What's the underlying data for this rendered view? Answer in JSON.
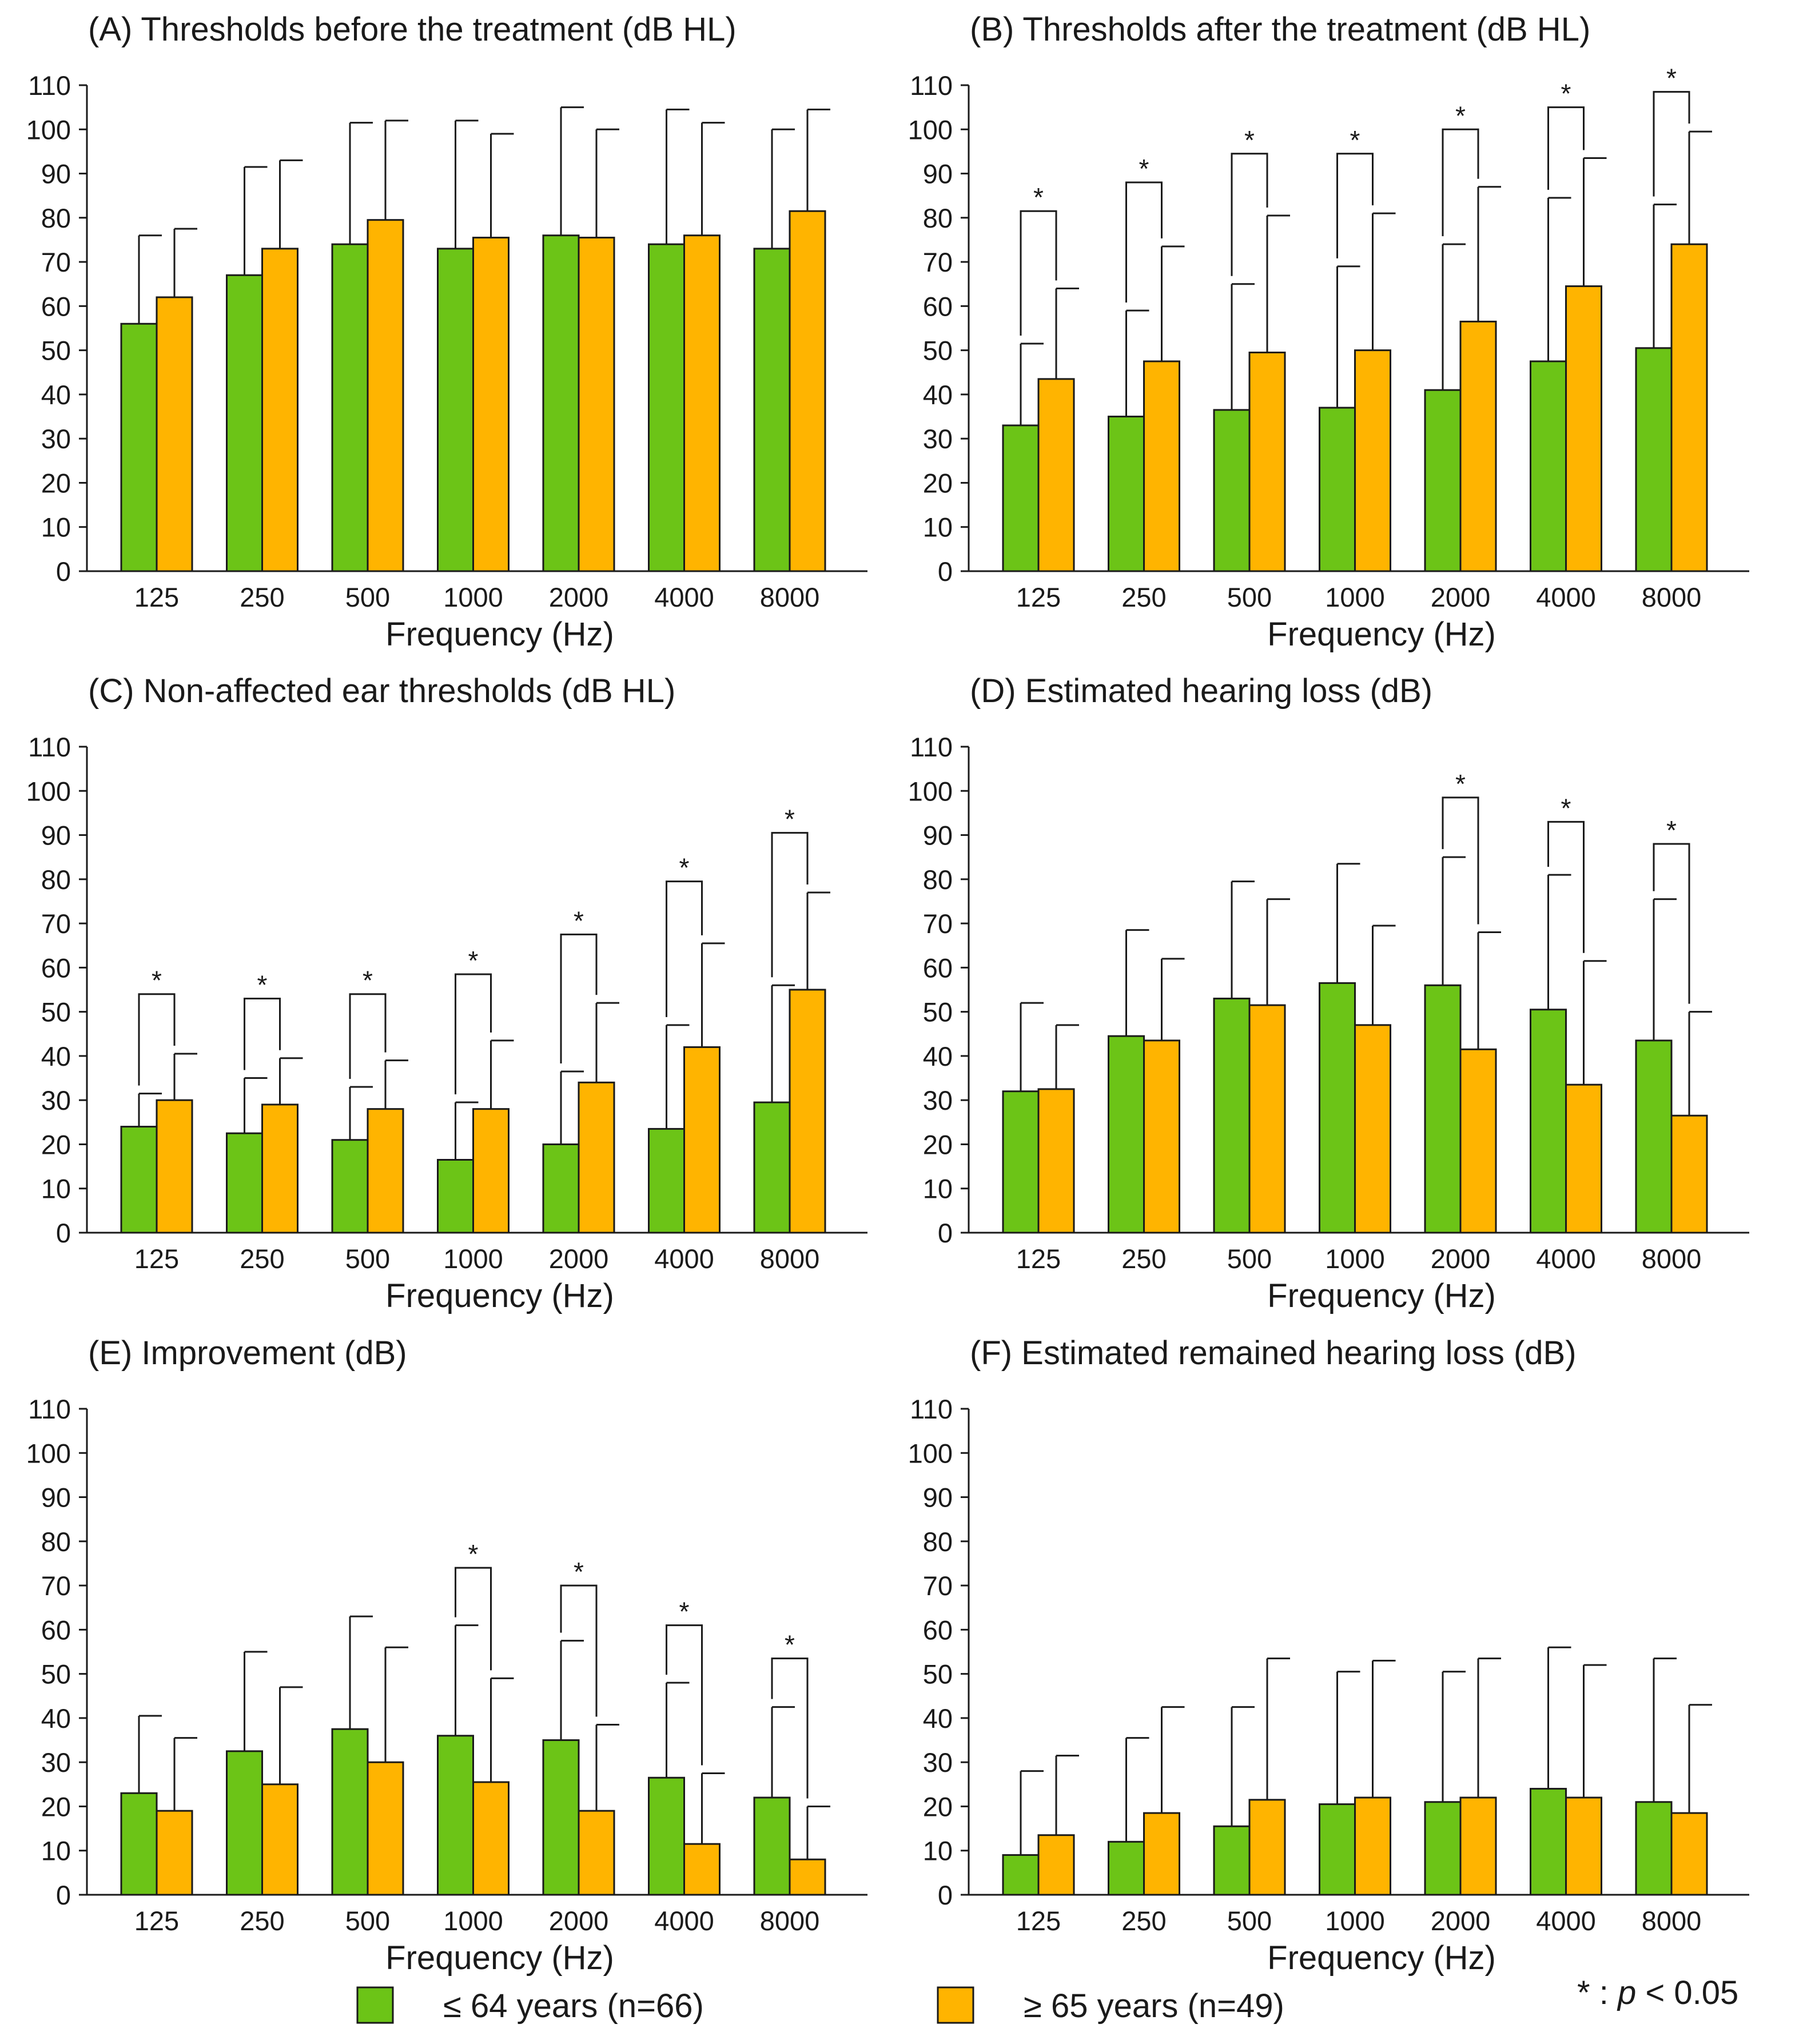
{
  "chart_data": [
    {
      "id": "A",
      "type": "bar",
      "title": "(A) Thresholds before the treatment (dB HL)",
      "xlabel": "Frequency (Hz)",
      "ylabel": "",
      "ylim": [
        0,
        110
      ],
      "yticks": [
        "0",
        "10",
        "20",
        "30",
        "40",
        "50",
        "60",
        "70",
        "80",
        "90",
        "100",
        "110"
      ],
      "categories": [
        "125",
        "250",
        "500",
        "1000",
        "2000",
        "4000",
        "8000"
      ],
      "series": [
        {
          "name": "≤ 64 years (n=66)",
          "values": [
            56,
            67,
            74,
            73,
            76,
            74,
            73
          ],
          "errors": [
            76,
            91.5,
            101.5,
            102,
            105,
            104.5,
            100
          ]
        },
        {
          "name": "≥ 65 years (n=49)",
          "values": [
            62,
            73,
            79.5,
            75.5,
            75.5,
            76,
            81.5
          ],
          "errors": [
            77.5,
            93,
            102,
            99,
            100,
            101.5,
            104.5
          ]
        }
      ],
      "significance": []
    },
    {
      "id": "B",
      "type": "bar",
      "title": "(B) Thresholds after the treatment (dB HL)",
      "xlabel": "Frequency (Hz)",
      "ylabel": "",
      "ylim": [
        0,
        110
      ],
      "yticks": [
        "0",
        "10",
        "20",
        "30",
        "40",
        "50",
        "60",
        "70",
        "80",
        "90",
        "100",
        "110"
      ],
      "categories": [
        "125",
        "250",
        "500",
        "1000",
        "2000",
        "4000",
        "8000"
      ],
      "series": [
        {
          "name": "≤ 64 years (n=66)",
          "values": [
            33,
            35,
            36.5,
            37,
            41,
            47.5,
            50.5
          ],
          "errors": [
            51.5,
            59,
            65,
            69,
            74,
            84.5,
            83
          ]
        },
        {
          "name": "≥ 65 years (n=49)",
          "values": [
            43.5,
            47.5,
            49.5,
            50,
            56.5,
            64.5,
            74
          ],
          "errors": [
            64,
            73.5,
            80.5,
            81,
            87,
            93.5,
            99.5
          ]
        }
      ],
      "significance": [
        {
          "category": "125",
          "label": "*",
          "level": 81.5
        },
        {
          "category": "250",
          "label": "*",
          "level": 88
        },
        {
          "category": "500",
          "label": "*",
          "level": 94.5
        },
        {
          "category": "1000",
          "label": "*",
          "level": 94.5
        },
        {
          "category": "2000",
          "label": "*",
          "level": 100
        },
        {
          "category": "4000",
          "label": "*",
          "level": 105
        },
        {
          "category": "8000",
          "label": "*",
          "level": 108.5
        }
      ]
    },
    {
      "id": "C",
      "type": "bar",
      "title": "(C) Non-affected ear thresholds (dB HL)",
      "xlabel": "Frequency (Hz)",
      "ylabel": "",
      "ylim": [
        0,
        110
      ],
      "yticks": [
        "0",
        "10",
        "20",
        "30",
        "40",
        "50",
        "60",
        "70",
        "80",
        "90",
        "100",
        "110"
      ],
      "categories": [
        "125",
        "250",
        "500",
        "1000",
        "2000",
        "4000",
        "8000"
      ],
      "series": [
        {
          "name": "≤ 64 years (n=66)",
          "values": [
            24,
            22.5,
            21,
            16.5,
            20,
            23.5,
            29.5
          ],
          "errors": [
            31.5,
            35,
            33,
            29.5,
            36.5,
            47,
            56
          ]
        },
        {
          "name": "≥ 65 years (n=49)",
          "values": [
            30,
            29,
            28,
            28,
            34,
            42,
            55
          ],
          "errors": [
            40.5,
            39.5,
            39,
            43.5,
            52,
            65.5,
            77
          ]
        }
      ],
      "significance": [
        {
          "category": "125",
          "label": "*",
          "level": 54
        },
        {
          "category": "250",
          "label": "*",
          "level": 53
        },
        {
          "category": "500",
          "label": "*",
          "level": 54
        },
        {
          "category": "1000",
          "label": "*",
          "level": 58.5
        },
        {
          "category": "2000",
          "label": "*",
          "level": 67.5
        },
        {
          "category": "4000",
          "label": "*",
          "level": 79.5
        },
        {
          "category": "8000",
          "label": "*",
          "level": 90.5
        }
      ]
    },
    {
      "id": "D",
      "type": "bar",
      "title": "(D) Estimated hearing loss (dB)",
      "xlabel": "Frequency (Hz)",
      "ylabel": "",
      "ylim": [
        0,
        110
      ],
      "yticks": [
        "0",
        "10",
        "20",
        "30",
        "40",
        "50",
        "60",
        "70",
        "80",
        "90",
        "100",
        "110"
      ],
      "categories": [
        "125",
        "250",
        "500",
        "1000",
        "2000",
        "4000",
        "8000"
      ],
      "series": [
        {
          "name": "≤ 64 years (n=66)",
          "values": [
            32,
            44.5,
            53,
            56.5,
            56,
            50.5,
            43.5
          ],
          "errors": [
            52,
            68.5,
            79.5,
            83.5,
            85,
            81,
            75.5
          ]
        },
        {
          "name": "≥ 65 years (n=49)",
          "values": [
            32.5,
            43.5,
            51.5,
            47,
            41.5,
            33.5,
            26.5
          ],
          "errors": [
            47,
            62,
            75.5,
            69.5,
            68,
            61.5,
            50
          ]
        }
      ],
      "significance": [
        {
          "category": "2000",
          "label": "*",
          "level": 98.5
        },
        {
          "category": "4000",
          "label": "*",
          "level": 93
        },
        {
          "category": "8000",
          "label": "*",
          "level": 88
        }
      ]
    },
    {
      "id": "E",
      "type": "bar",
      "title": "(E) Improvement (dB)",
      "xlabel": "Frequency (Hz)",
      "ylabel": "",
      "ylim": [
        0,
        110
      ],
      "yticks": [
        "0",
        "10",
        "20",
        "30",
        "40",
        "50",
        "60",
        "70",
        "80",
        "90",
        "100",
        "110"
      ],
      "categories": [
        "125",
        "250",
        "500",
        "1000",
        "2000",
        "4000",
        "8000"
      ],
      "series": [
        {
          "name": "≤ 64 years (n=66)",
          "values": [
            23,
            32.5,
            37.5,
            36,
            35,
            26.5,
            22
          ],
          "errors": [
            40.5,
            55,
            63,
            61,
            57.5,
            48,
            42.5
          ]
        },
        {
          "name": "≥ 65 years (n=49)",
          "values": [
            19,
            25,
            30,
            25.5,
            19,
            11.5,
            8
          ],
          "errors": [
            35.5,
            47,
            56,
            49,
            38.5,
            27.5,
            20
          ]
        }
      ],
      "significance": [
        {
          "category": "1000",
          "label": "*",
          "level": 74
        },
        {
          "category": "2000",
          "label": "*",
          "level": 70
        },
        {
          "category": "4000",
          "label": "*",
          "level": 61
        },
        {
          "category": "8000",
          "label": "*",
          "level": 53.5
        }
      ]
    },
    {
      "id": "F",
      "type": "bar",
      "title": "(F) Estimated remained hearing loss (dB)",
      "xlabel": "Frequency (Hz)",
      "ylabel": "",
      "ylim": [
        0,
        110
      ],
      "yticks": [
        "0",
        "10",
        "20",
        "30",
        "40",
        "50",
        "60",
        "70",
        "80",
        "90",
        "100",
        "110"
      ],
      "categories": [
        "125",
        "250",
        "500",
        "1000",
        "2000",
        "4000",
        "8000"
      ],
      "series": [
        {
          "name": "≤ 64 years (n=66)",
          "values": [
            9,
            12,
            15.5,
            20.5,
            21,
            24,
            21
          ],
          "errors": [
            28,
            35.5,
            42.5,
            50.5,
            50.5,
            56,
            53.5
          ]
        },
        {
          "name": "≥ 65 years (n=49)",
          "values": [
            13.5,
            18.5,
            21.5,
            22,
            22,
            22,
            18.5
          ],
          "errors": [
            31.5,
            42.5,
            53.5,
            53,
            53.5,
            52,
            43
          ]
        }
      ],
      "significance": []
    }
  ],
  "legend": {
    "items": [
      {
        "label": "≤ 64 years (n=66)",
        "color": "#6cc417"
      },
      {
        "label": "≥ 65 years (n=49)",
        "color": "#ffb400"
      }
    ],
    "significance_note": "* : p < 0.05",
    "significance_star": "*",
    "significance_colon": ":",
    "significance_p": "p",
    "significance_rest": "< 0.05"
  },
  "colors": {
    "green": "#6cc417",
    "orange": "#ffb400",
    "stroke": "#1a1a1a"
  }
}
